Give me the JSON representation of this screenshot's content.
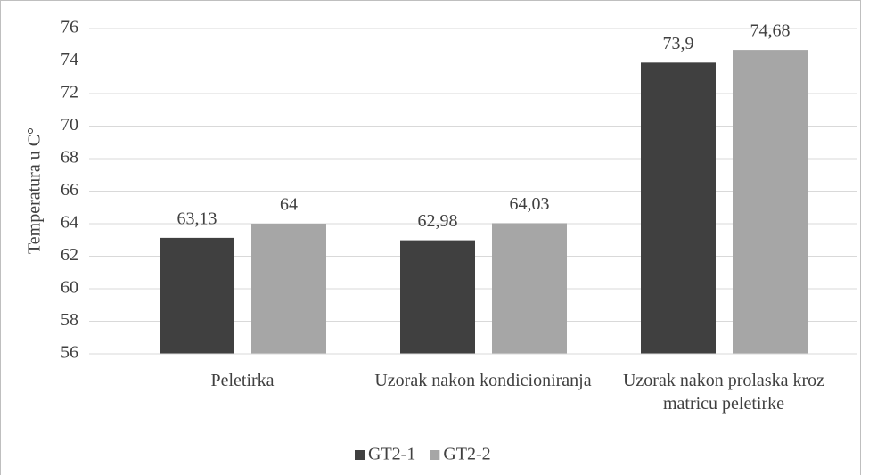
{
  "chart_data": {
    "type": "bar",
    "y_label": "Temperatura u C°",
    "categories": [
      "Peletirka",
      "Uzorak nakon kondicioniranja",
      "Uzorak nakon prolaska kroz matricu peletirke"
    ],
    "series": [
      {
        "name": "GT2-1",
        "color": "#404040",
        "values": [
          63.13,
          62.98,
          73.9
        ],
        "value_labels": [
          "63,13",
          "62,98",
          "73,9"
        ]
      },
      {
        "name": "GT2-2",
        "color": "#a6a6a6",
        "values": [
          64,
          64.03,
          74.68
        ],
        "value_labels": [
          "64",
          "64,03",
          "74,68"
        ]
      }
    ],
    "ylim": [
      56,
      76
    ],
    "yticks": [
      56,
      58,
      60,
      62,
      64,
      66,
      68,
      70,
      72,
      74,
      76
    ],
    "grid": true,
    "legend": "bottom"
  }
}
